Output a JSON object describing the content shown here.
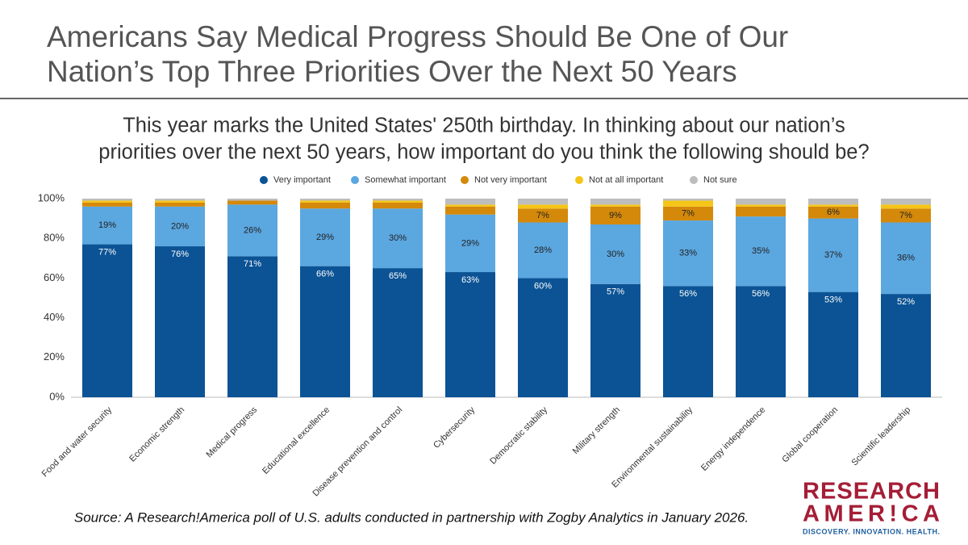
{
  "chart_data": {
    "type": "stacked_bar",
    "title": [
      "Americans Say Medical Progress Should Be One of Our",
      "Nation’s Top Three Priorities Over the Next 50 Years"
    ],
    "subtitle": [
      "This year marks the United States' 250th birthday. In thinking about our nation’s",
      "priorities over the next 50 years, how important do you think the following should be?"
    ],
    "categories": [
      "Food and water security",
      "Economic strength",
      "Medical progress",
      "Educational excellence",
      "Disease prevention and control",
      "Cybersecurity",
      "Democratic stability",
      "Military strength",
      "Environmental sustainability",
      "Energy independence",
      "Global cooperation",
      "Scientific leadership"
    ],
    "series": [
      {
        "name": "Very important",
        "color": "#0b5394",
        "values": [
          77,
          76,
          71,
          66,
          65,
          63,
          60,
          57,
          56,
          56,
          53,
          52
        ],
        "value_labels": [
          "77%",
          "76%",
          "71%",
          "66%",
          "65%",
          "63%",
          "60%",
          "57%",
          "56%",
          "56%",
          "53%",
          "52%"
        ]
      },
      {
        "name": "Somewhat important",
        "color": "#5ba7e0",
        "values": [
          19,
          20,
          26,
          29,
          30,
          29,
          28,
          30,
          33,
          35,
          37,
          36
        ],
        "value_labels": [
          "19%",
          "20%",
          "26%",
          "29%",
          "30%",
          "29%",
          "28%",
          "30%",
          "33%",
          "35%",
          "37%",
          "36%"
        ]
      },
      {
        "name": "Not very important",
        "color": "#d4890a",
        "values": [
          2,
          2,
          2,
          3,
          3,
          4,
          7,
          9,
          7,
          5,
          6,
          7
        ],
        "value_labels": [
          null,
          null,
          null,
          null,
          null,
          null,
          "7%",
          "9%",
          "7%",
          null,
          "6%",
          "7%"
        ]
      },
      {
        "name": "Not at all important",
        "color": "#f5c518",
        "values": [
          1,
          1,
          0,
          1,
          1,
          1,
          2,
          1,
          3,
          1,
          1,
          2
        ]
      },
      {
        "name": "Not sure",
        "color": "#bdbdbd",
        "values": [
          1,
          1,
          1,
          1,
          1,
          3,
          3,
          3,
          1,
          3,
          3,
          3
        ]
      }
    ],
    "ylim": [
      0,
      100
    ],
    "yticks": [
      {
        "value": 0,
        "label": "0%"
      },
      {
        "value": 20,
        "label": "20%"
      },
      {
        "value": 40,
        "label": "40%"
      },
      {
        "value": 60,
        "label": "60%"
      },
      {
        "value": 80,
        "label": "80%"
      },
      {
        "value": 100,
        "label": "100%"
      }
    ],
    "grid": false,
    "source": "Source: A Research!America poll of U.S. adults conducted in partnership with Zogby Analytics in January 2026.",
    "logo": {
      "line1": "RESEARCH",
      "line2": "AMER!CA",
      "tagline": "DISCOVERY. INNOVATION. HEALTH."
    }
  }
}
